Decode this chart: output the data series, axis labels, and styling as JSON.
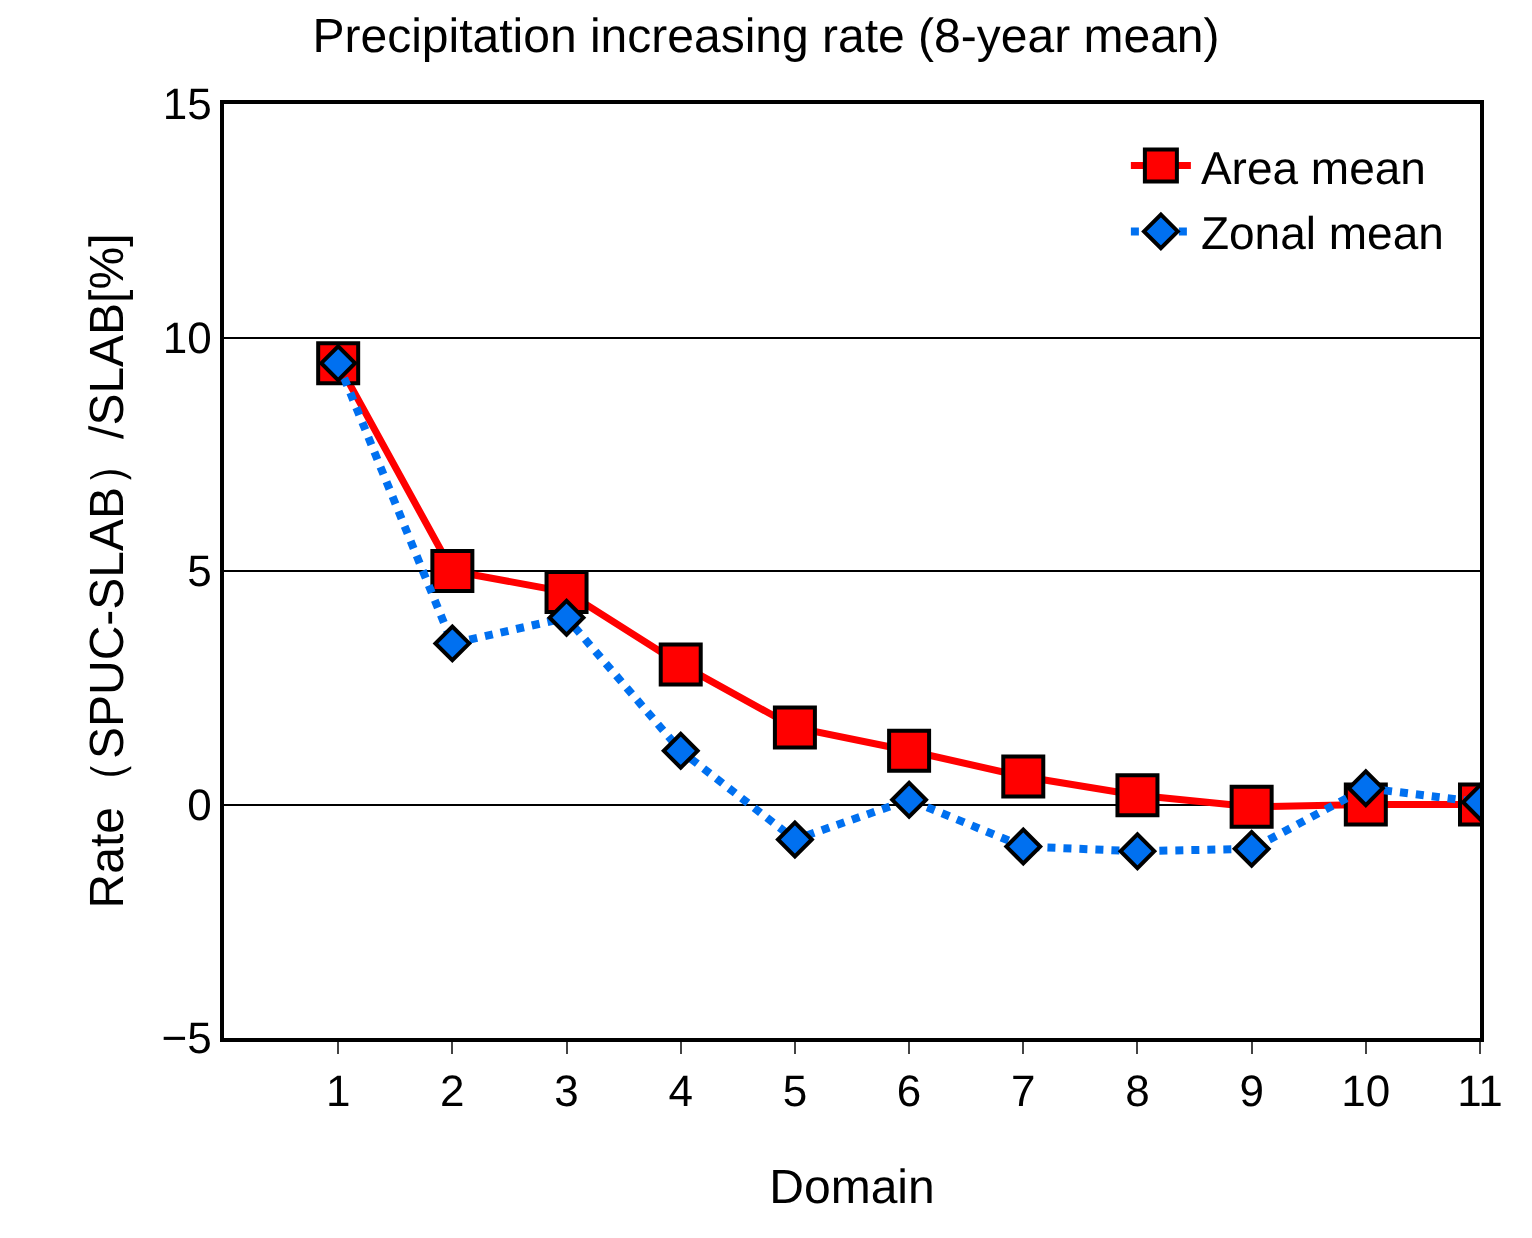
{
  "chart_data": {
    "type": "line",
    "title": "Precipitation increasing rate (8-year mean)",
    "xlabel": "Domain",
    "ylabel": "Rate（SPUC-SLAB）/SLAB[%]",
    "x": [
      1,
      2,
      3,
      4,
      5,
      6,
      7,
      8,
      9,
      10,
      11
    ],
    "series": [
      {
        "name": "Area mean",
        "color": "#ff0000",
        "marker": "square",
        "line_style": "solid",
        "values": [
          9.45,
          5.0,
          4.55,
          3.0,
          1.65,
          1.15,
          0.6,
          0.2,
          -0.05,
          0.0,
          0.0
        ]
      },
      {
        "name": "Zonal mean",
        "color": "#0070f0",
        "marker": "diamond",
        "line_style": "dotted",
        "values": [
          9.45,
          3.45,
          4.0,
          1.15,
          -0.75,
          0.1,
          -0.9,
          -1.0,
          -0.95,
          0.35,
          0.05
        ]
      }
    ],
    "xlim": [
      0,
      11
    ],
    "xticks": [
      1,
      2,
      3,
      4,
      5,
      6,
      7,
      8,
      9,
      10,
      11
    ],
    "ylim": [
      -5,
      15
    ],
    "yticks": [
      {
        "value": -5,
        "label": "−5"
      },
      0,
      5,
      10,
      15
    ],
    "grid": "y",
    "legend": "top right"
  }
}
